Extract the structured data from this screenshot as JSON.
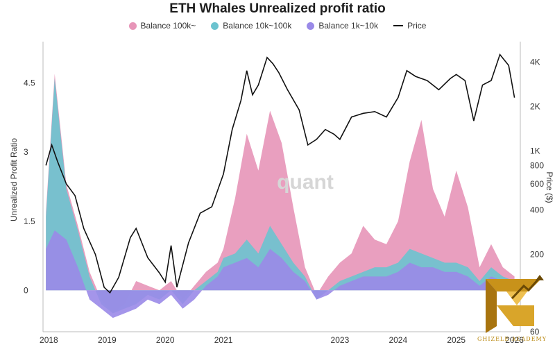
{
  "chart_data": {
    "type": "area",
    "title": "ETH Whales Unrealized profit ratio",
    "ylabel": "Unrealized Profit Ratio",
    "y2label": "Price ($)",
    "watermark": "quant",
    "ylim": [
      -0.9,
      5.4
    ],
    "y_ticks": [
      "4.5",
      "3",
      "1.5",
      "0"
    ],
    "y_tick_values": [
      4.5,
      3,
      1.5,
      0
    ],
    "y2_ticks": [
      "4K",
      "2K",
      "1K",
      "800",
      "600",
      "400",
      "200",
      "60"
    ],
    "y2_tick_values": [
      4000,
      2000,
      1000,
      800,
      600,
      400,
      200,
      60
    ],
    "y2lim": [
      60,
      5500
    ],
    "x_ticks": [
      "2018",
      "2019",
      "2020",
      "2021",
      "2023",
      "2024",
      "2025",
      "2026"
    ],
    "x_tick_values": [
      2018.0,
      2019.0,
      2020.0,
      2021.0,
      2023.0,
      2024.0,
      2025.0,
      2026.0
    ],
    "xlim": [
      2017.9,
      2026.1
    ],
    "series": [
      {
        "name": "Balance 1k~10k",
        "color": "#9a8ae8",
        "x": [
          2017.95,
          2018.1,
          2018.3,
          2018.5,
          2018.7,
          2018.9,
          2019.1,
          2019.3,
          2019.5,
          2019.7,
          2019.9,
          2020.1,
          2020.3,
          2020.5,
          2020.7,
          2020.9,
          2021.0,
          2021.2,
          2021.4,
          2021.6,
          2021.8,
          2022.0,
          2022.2,
          2022.4,
          2022.6,
          2022.8,
          2023.0,
          2023.2,
          2023.4,
          2023.6,
          2023.8,
          2024.0,
          2024.2,
          2024.4,
          2024.6,
          2024.8,
          2025.0,
          2025.2,
          2025.4,
          2025.6,
          2025.8,
          2026.0
        ],
        "values": [
          0.9,
          1.3,
          1.1,
          0.5,
          -0.2,
          -0.4,
          -0.6,
          -0.5,
          -0.4,
          -0.2,
          -0.3,
          -0.1,
          -0.4,
          -0.2,
          0.1,
          0.3,
          0.5,
          0.6,
          0.7,
          0.5,
          0.9,
          0.7,
          0.4,
          0.2,
          -0.2,
          -0.1,
          0.1,
          0.2,
          0.3,
          0.3,
          0.3,
          0.4,
          0.6,
          0.5,
          0.5,
          0.4,
          0.4,
          0.3,
          0.1,
          0.3,
          0.2,
          0.15
        ]
      },
      {
        "name": "Balance 10k~100k",
        "color": "#6cc3cf",
        "x": [
          2017.95,
          2018.1,
          2018.3,
          2018.5,
          2018.7,
          2018.9,
          2019.1,
          2019.3,
          2019.5,
          2019.7,
          2019.9,
          2020.1,
          2020.3,
          2020.5,
          2020.7,
          2020.9,
          2021.0,
          2021.2,
          2021.4,
          2021.6,
          2021.8,
          2022.0,
          2022.2,
          2022.4,
          2022.6,
          2022.8,
          2023.0,
          2023.2,
          2023.4,
          2023.6,
          2023.8,
          2024.0,
          2024.2,
          2024.4,
          2024.6,
          2024.8,
          2025.0,
          2025.2,
          2025.4,
          2025.6,
          2025.8,
          2026.0
        ],
        "values": [
          1.6,
          4.6,
          2.2,
          1.3,
          0.3,
          -0.3,
          -0.5,
          -0.4,
          -0.3,
          -0.1,
          -0.2,
          0.0,
          -0.3,
          0.0,
          0.2,
          0.4,
          0.7,
          0.8,
          1.1,
          0.8,
          1.4,
          1.0,
          0.6,
          0.3,
          -0.2,
          0.0,
          0.2,
          0.3,
          0.4,
          0.5,
          0.5,
          0.6,
          0.9,
          0.8,
          0.7,
          0.6,
          0.6,
          0.5,
          0.2,
          0.5,
          0.3,
          0.2
        ]
      },
      {
        "name": "Balance 100k~",
        "color": "#e795b8",
        "x": [
          2017.95,
          2018.1,
          2018.3,
          2018.5,
          2018.7,
          2018.9,
          2019.1,
          2019.3,
          2019.5,
          2019.7,
          2019.9,
          2020.1,
          2020.3,
          2020.5,
          2020.7,
          2020.9,
          2021.0,
          2021.2,
          2021.4,
          2021.6,
          2021.8,
          2022.0,
          2022.2,
          2022.4,
          2022.6,
          2022.8,
          2023.0,
          2023.2,
          2023.4,
          2023.6,
          2023.8,
          2024.0,
          2024.2,
          2024.4,
          2024.6,
          2024.8,
          2025.0,
          2025.2,
          2025.4,
          2025.6,
          2025.8,
          2026.0
        ],
        "values": [
          1.7,
          4.7,
          2.3,
          1.4,
          0.4,
          -0.2,
          -0.5,
          -0.3,
          0.2,
          0.1,
          0.0,
          0.2,
          -0.2,
          0.1,
          0.4,
          0.6,
          0.9,
          2.0,
          3.4,
          2.6,
          3.9,
          3.2,
          1.8,
          0.5,
          -0.1,
          0.3,
          0.6,
          0.8,
          1.4,
          1.1,
          1.0,
          1.5,
          2.8,
          3.7,
          2.2,
          1.6,
          2.6,
          1.8,
          0.5,
          1.0,
          0.5,
          0.3
        ]
      }
    ],
    "price_series": {
      "name": "Price",
      "color": "#111111",
      "x": [
        2017.95,
        2018.05,
        2018.15,
        2018.3,
        2018.45,
        2018.6,
        2018.8,
        2018.95,
        2019.05,
        2019.2,
        2019.4,
        2019.5,
        2019.7,
        2019.9,
        2020.0,
        2020.1,
        2020.2,
        2020.4,
        2020.6,
        2020.8,
        2021.0,
        2021.15,
        2021.3,
        2021.4,
        2021.5,
        2021.6,
        2021.75,
        2021.85,
        2021.95,
        2022.1,
        2022.3,
        2022.45,
        2022.6,
        2022.75,
        2022.9,
        2023.0,
        2023.2,
        2023.4,
        2023.6,
        2023.8,
        2024.0,
        2024.15,
        2024.3,
        2024.5,
        2024.7,
        2024.9,
        2025.0,
        2025.15,
        2025.3,
        2025.45,
        2025.6,
        2025.75,
        2025.9,
        2026.0
      ],
      "values": [
        800,
        1100,
        850,
        600,
        500,
        300,
        200,
        120,
        110,
        140,
        260,
        300,
        190,
        150,
        130,
        230,
        120,
        240,
        380,
        420,
        700,
        1400,
        2200,
        3500,
        2400,
        2800,
        4300,
        3900,
        3400,
        2600,
        1900,
        1100,
        1200,
        1400,
        1300,
        1200,
        1700,
        1800,
        1850,
        1700,
        2300,
        3500,
        3200,
        3000,
        2600,
        3100,
        3300,
        3000,
        1600,
        2800,
        3000,
        4500,
        3800,
        2300
      ]
    },
    "legend": [
      "Balance 100k~",
      "Balance 10k~100k",
      "Balance 1k~10k",
      "Price"
    ],
    "legend_colors": [
      "#e795b8",
      "#6cc3cf",
      "#9a8ae8",
      "#111111"
    ],
    "logo_text": "GHIZELE ACADEMY"
  }
}
